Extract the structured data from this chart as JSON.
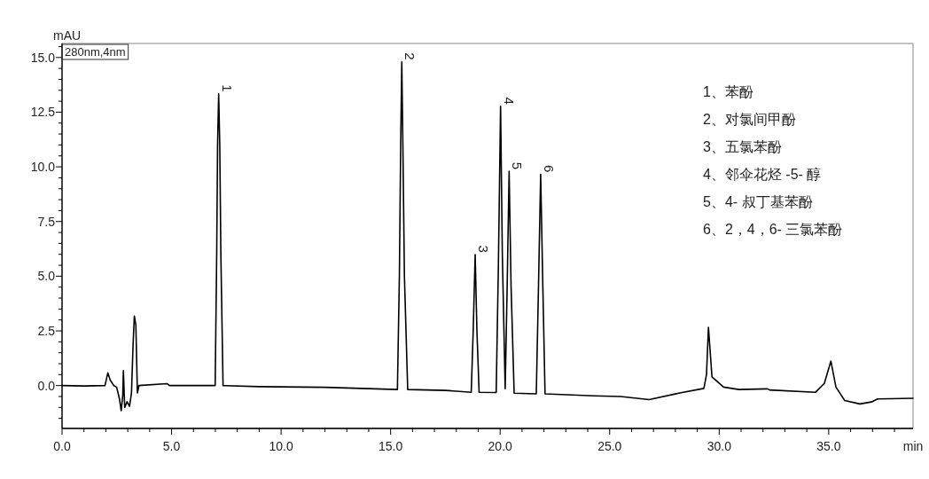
{
  "chart_data": {
    "type": "line",
    "xlabel": "min",
    "ylabel": "mAU",
    "xlim": [
      0,
      38.85
    ],
    "ylim": [
      -1.96,
      15.64
    ],
    "xticks": [
      {
        "value": 0,
        "label": "0.0"
      },
      {
        "value": 1,
        "label": null
      },
      {
        "value": 2,
        "label": null
      },
      {
        "value": 3,
        "label": null
      },
      {
        "value": 4,
        "label": null
      },
      {
        "value": 5,
        "label": "5.0"
      },
      {
        "value": 6,
        "label": null
      },
      {
        "value": 7,
        "label": null
      },
      {
        "value": 8,
        "label": null
      },
      {
        "value": 9,
        "label": null
      },
      {
        "value": 10,
        "label": "10.0"
      },
      {
        "value": 11,
        "label": null
      },
      {
        "value": 12,
        "label": null
      },
      {
        "value": 13,
        "label": null
      },
      {
        "value": 14,
        "label": null
      },
      {
        "value": 15,
        "label": "15.0"
      },
      {
        "value": 16,
        "label": null
      },
      {
        "value": 17,
        "label": null
      },
      {
        "value": 18,
        "label": null
      },
      {
        "value": 19,
        "label": null
      },
      {
        "value": 20,
        "label": "20.0"
      },
      {
        "value": 21,
        "label": null
      },
      {
        "value": 22,
        "label": null
      },
      {
        "value": 23,
        "label": null
      },
      {
        "value": 24,
        "label": null
      },
      {
        "value": 25,
        "label": "25.0"
      },
      {
        "value": 26,
        "label": null
      },
      {
        "value": 27,
        "label": null
      },
      {
        "value": 28,
        "label": null
      },
      {
        "value": 29,
        "label": null
      },
      {
        "value": 30,
        "label": "30.0"
      },
      {
        "value": 31,
        "label": null
      },
      {
        "value": 32,
        "label": null
      },
      {
        "value": 33,
        "label": null
      },
      {
        "value": 34,
        "label": null
      },
      {
        "value": 35,
        "label": "35.0"
      },
      {
        "value": 36,
        "label": null
      },
      {
        "value": 37,
        "label": null
      },
      {
        "value": 38,
        "label": null
      }
    ],
    "yticks": [
      {
        "value": -1.5,
        "label": null
      },
      {
        "value": -1,
        "label": null
      },
      {
        "value": -0.5,
        "label": null
      },
      {
        "value": 0,
        "label": "0.0"
      },
      {
        "value": 0.5,
        "label": null
      },
      {
        "value": 1,
        "label": null
      },
      {
        "value": 1.5,
        "label": null
      },
      {
        "value": 2,
        "label": null
      },
      {
        "value": 2.5,
        "label": "2.5"
      },
      {
        "value": 3,
        "label": null
      },
      {
        "value": 3.5,
        "label": null
      },
      {
        "value": 4,
        "label": null
      },
      {
        "value": 4.5,
        "label": null
      },
      {
        "value": 5,
        "label": "5.0"
      },
      {
        "value": 5.5,
        "label": null
      },
      {
        "value": 6,
        "label": null
      },
      {
        "value": 6.5,
        "label": null
      },
      {
        "value": 7,
        "label": null
      },
      {
        "value": 7.5,
        "label": "7.5"
      },
      {
        "value": 8,
        "label": null
      },
      {
        "value": 8.5,
        "label": null
      },
      {
        "value": 9,
        "label": null
      },
      {
        "value": 9.5,
        "label": null
      },
      {
        "value": 10,
        "label": "10.0"
      },
      {
        "value": 10.5,
        "label": null
      },
      {
        "value": 11,
        "label": null
      },
      {
        "value": 11.5,
        "label": null
      },
      {
        "value": 12,
        "label": null
      },
      {
        "value": 12.5,
        "label": "12.5"
      },
      {
        "value": 13,
        "label": null
      },
      {
        "value": 13.5,
        "label": null
      },
      {
        "value": 14,
        "label": null
      },
      {
        "value": 14.5,
        "label": null
      },
      {
        "value": 15,
        "label": "15.0"
      },
      {
        "value": 15.5,
        "label": null
      }
    ],
    "series": [
      {
        "color": "#000000",
        "x": [
          0,
          1.0,
          1.96,
          2.09,
          2.2,
          2.36,
          2.49,
          2.62,
          2.7,
          2.77,
          2.8,
          2.86,
          2.97,
          3.08,
          3.17,
          3.24,
          3.3,
          3.37,
          3.44,
          3.51,
          4.79,
          4.9,
          6.99,
          7.06,
          7.1,
          7.15,
          7.2,
          7.25,
          7.35,
          9.0,
          12.0,
          15.31,
          15.4,
          15.46,
          15.51,
          15.56,
          15.63,
          15.78,
          17.5,
          18.68,
          18.77,
          18.86,
          18.94,
          19.04,
          19.82,
          19.92,
          20.02,
          20.1,
          20.23,
          20.32,
          20.41,
          20.5,
          20.64,
          21.65,
          21.75,
          21.85,
          21.95,
          22.05,
          24.28,
          25.5,
          26.8,
          28.2,
          29.3,
          29.42,
          29.51,
          29.67,
          30.2,
          30.9,
          32.2,
          32.3,
          34.39,
          34.8,
          35.1,
          35.33,
          35.73,
          36.42,
          36.95,
          37.23,
          38.85
        ],
        "values": [
          0,
          -0.02,
          0,
          0.58,
          0.25,
          0,
          -0.07,
          -0.6,
          -1.15,
          -0.47,
          0.68,
          -1.0,
          -0.74,
          -0.95,
          -0.34,
          1.8,
          3.18,
          2.77,
          -0.34,
          0,
          0.09,
          0,
          0,
          6.0,
          11.0,
          13.34,
          11.0,
          6.0,
          0,
          -0.05,
          -0.08,
          -0.18,
          5.0,
          11.0,
          14.8,
          11.0,
          5.0,
          -0.18,
          -0.22,
          -0.31,
          2.5,
          5.99,
          2.5,
          -0.31,
          -0.32,
          5.5,
          12.77,
          6.0,
          -0.14,
          4.5,
          9.8,
          4.5,
          -0.35,
          -0.38,
          4.5,
          9.66,
          4.5,
          -0.38,
          -0.47,
          -0.5,
          -0.64,
          -0.34,
          -0.13,
          0.5,
          2.66,
          0.4,
          -0.07,
          -0.18,
          -0.15,
          -0.2,
          -0.31,
          0.1,
          1.12,
          -0.07,
          -0.68,
          -0.84,
          -0.75,
          -0.61,
          -0.58
        ]
      }
    ],
    "annotations": [
      "280nm,4nm",
      {
        "text": "1",
        "x": 7.15,
        "y": 13.34
      },
      {
        "text": "2",
        "x": 15.51,
        "y": 14.8
      },
      {
        "text": "3",
        "x": 18.86,
        "y": 5.99
      },
      {
        "text": "4",
        "x": 20.02,
        "y": 12.77
      },
      {
        "text": "5",
        "x": 20.41,
        "y": 9.8
      },
      {
        "text": "6",
        "x": 21.85,
        "y": 9.66
      },
      "1、苯酚",
      "2、对氯间甲酚",
      "3、五氯苯酚",
      "4、邻伞花烃 -5- 醇",
      "5、4- 叔丁基苯酚",
      "6、2，4，6- 三氯苯酚"
    ]
  }
}
